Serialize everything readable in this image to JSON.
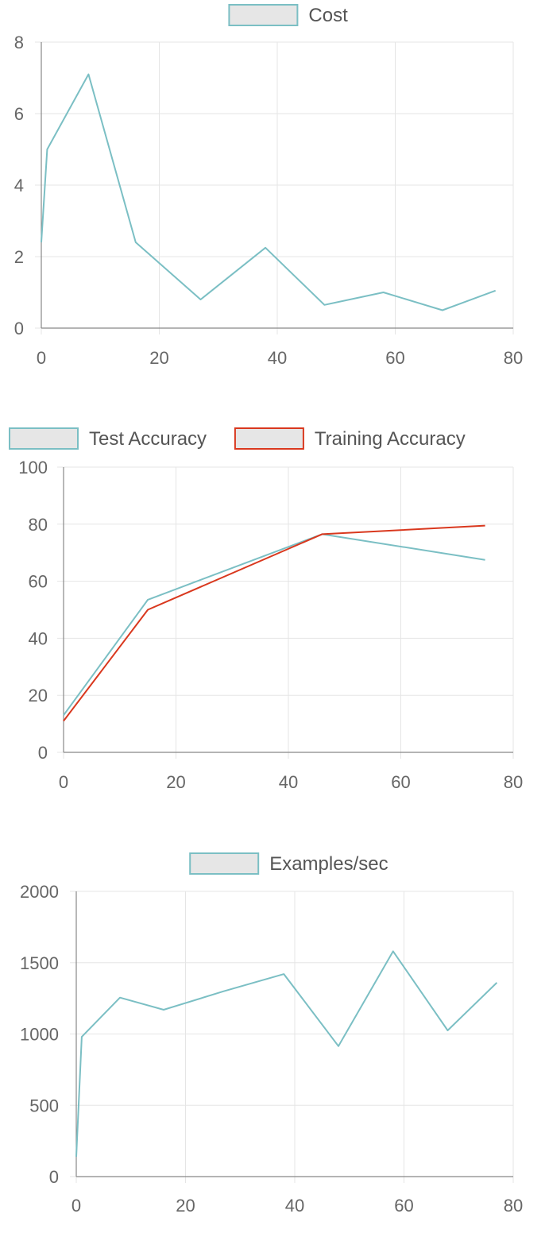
{
  "chart_data": [
    {
      "type": "line",
      "title": "",
      "xlabel": "",
      "ylabel": "",
      "xlim": [
        0,
        80
      ],
      "ylim": [
        0,
        8
      ],
      "x_ticks": [
        0,
        20,
        40,
        60,
        80
      ],
      "y_ticks": [
        0,
        2,
        4,
        6,
        8
      ],
      "grid": true,
      "legend_position": "top-center",
      "series": [
        {
          "name": "Cost",
          "color": "#7bbfc4",
          "points": [
            [
              0,
              2.4
            ],
            [
              1,
              5.0
            ],
            [
              8,
              7.1
            ],
            [
              16,
              2.4
            ],
            [
              27,
              0.8
            ],
            [
              38,
              2.25
            ],
            [
              48,
              0.65
            ],
            [
              58,
              1.0
            ],
            [
              68,
              0.5
            ],
            [
              77,
              1.05
            ]
          ]
        }
      ]
    },
    {
      "type": "line",
      "title": "",
      "xlabel": "",
      "ylabel": "",
      "xlim": [
        0,
        80
      ],
      "ylim": [
        0,
        100
      ],
      "x_ticks": [
        0,
        20,
        40,
        60,
        80
      ],
      "y_ticks": [
        0,
        20,
        40,
        60,
        80,
        100
      ],
      "grid": true,
      "legend_position": "top-left",
      "series": [
        {
          "name": "Test Accuracy",
          "color": "#7bbfc4",
          "points": [
            [
              0,
              13
            ],
            [
              15,
              53.5
            ],
            [
              46,
              76.5
            ],
            [
              75,
              67.5
            ]
          ]
        },
        {
          "name": "Training Accuracy",
          "color": "#d9381e",
          "points": [
            [
              0,
              11
            ],
            [
              15,
              50
            ],
            [
              46,
              76.5
            ],
            [
              75,
              79.5
            ]
          ]
        }
      ]
    },
    {
      "type": "line",
      "title": "",
      "xlabel": "",
      "ylabel": "",
      "xlim": [
        0,
        80
      ],
      "ylim": [
        0,
        2000
      ],
      "x_ticks": [
        0,
        20,
        40,
        60,
        80
      ],
      "y_ticks": [
        0,
        500,
        1000,
        1500,
        2000
      ],
      "grid": true,
      "legend_position": "top-center",
      "series": [
        {
          "name": "Examples/sec",
          "color": "#7bbfc4",
          "points": [
            [
              0,
              140
            ],
            [
              1,
              980
            ],
            [
              8,
              1255
            ],
            [
              16,
              1170
            ],
            [
              27,
              1300
            ],
            [
              38,
              1420
            ],
            [
              48,
              915
            ],
            [
              58,
              1580
            ],
            [
              68,
              1025
            ],
            [
              77,
              1360
            ]
          ]
        }
      ]
    }
  ],
  "colors": {
    "grid": "#e5e5e5",
    "axis": "#888888",
    "legend_box_fill": "#e6e6e6",
    "tick_text": "#666666"
  }
}
